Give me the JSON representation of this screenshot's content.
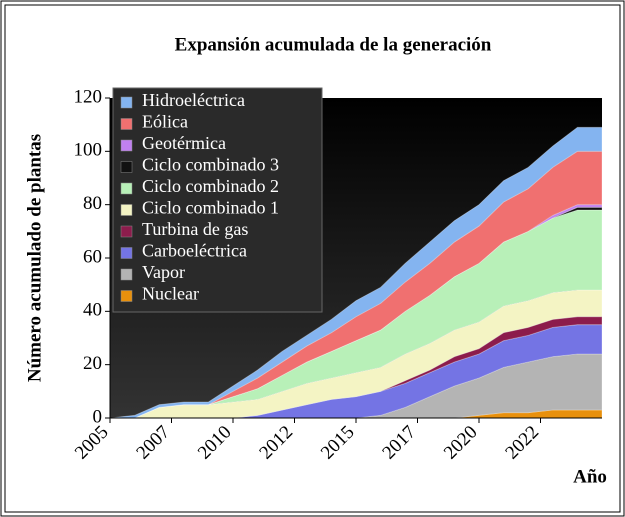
{
  "chart_data": {
    "type": "area",
    "title": "Expansión acumulada de la generación",
    "ylabel": "Número acumulado de plantas",
    "xlabel": "Año",
    "x": [
      2005,
      2006,
      2007,
      2008,
      2009,
      2010,
      2011,
      2012,
      2013,
      2014,
      2015,
      2016,
      2017,
      2018,
      2019,
      2020,
      2021,
      2022,
      2023,
      2024,
      2025
    ],
    "xlim": [
      2005,
      2025
    ],
    "xticks": [
      2005,
      {
        "value": 2007.5,
        "label": "2007"
      },
      2010,
      {
        "value": 2012.5,
        "label": "2012"
      },
      2015,
      {
        "value": 2017.5,
        "label": "2017"
      },
      2020,
      {
        "value": 2022.5,
        "label": "2022"
      }
    ],
    "ylim": [
      0,
      120
    ],
    "yticks": [
      0,
      20,
      40,
      60,
      80,
      100,
      120
    ],
    "stacked": true,
    "series": [
      {
        "name": "Nuclear",
        "color": "#e8900c",
        "values": [
          0,
          0,
          0,
          0,
          0,
          0,
          0,
          0,
          0,
          0,
          0,
          0,
          0,
          0,
          0,
          1,
          2,
          2,
          3,
          3,
          3
        ]
      },
      {
        "name": "Vapor",
        "color": "#b4b4b4",
        "values": [
          0,
          0,
          0,
          0,
          0,
          0,
          0,
          0,
          0,
          0,
          0,
          1,
          4,
          8,
          12,
          14,
          17,
          19,
          20,
          21,
          21
        ]
      },
      {
        "name": "Carboeléctrica",
        "color": "#7474e4",
        "values": [
          0,
          0,
          0,
          0,
          0,
          0,
          1,
          3,
          5,
          7,
          8,
          9,
          9,
          9,
          9,
          9,
          10,
          10,
          11,
          11,
          11
        ]
      },
      {
        "name": "Turbina de gas",
        "color": "#8c1c4c",
        "values": [
          0,
          0,
          0,
          0,
          0,
          0,
          0,
          0,
          0,
          0,
          0,
          0,
          1,
          1,
          2,
          2,
          3,
          3,
          3,
          3,
          3
        ]
      },
      {
        "name": "Ciclo combinado 1",
        "color": "#f4f4c4",
        "values": [
          0,
          0,
          4,
          5,
          5,
          6,
          6,
          7,
          8,
          8,
          9,
          9,
          10,
          10,
          10,
          10,
          10,
          10,
          10,
          10,
          10
        ]
      },
      {
        "name": "Ciclo combinado 2",
        "color": "#b8f0b8",
        "values": [
          0,
          0,
          0,
          0,
          0,
          2,
          4,
          6,
          8,
          10,
          12,
          14,
          16,
          18,
          20,
          22,
          24,
          26,
          28,
          30,
          30
        ]
      },
      {
        "name": "Ciclo combinado 3",
        "color": "#111111",
        "values": [
          0,
          0,
          0,
          0,
          0,
          0,
          0,
          0,
          0,
          0,
          0,
          0,
          0,
          0,
          0,
          0,
          0,
          0,
          0,
          1,
          1
        ]
      },
      {
        "name": "Geotérmica",
        "color": "#c080f0",
        "values": [
          0,
          0,
          0,
          0,
          0,
          0,
          0,
          0,
          0,
          0,
          0,
          0,
          0,
          0,
          0,
          0,
          0,
          0,
          1,
          1,
          1
        ]
      },
      {
        "name": "Eólica",
        "color": "#f07070",
        "values": [
          0,
          0,
          0,
          0,
          0,
          2,
          4,
          5,
          6,
          7,
          9,
          10,
          11,
          12,
          13,
          14,
          15,
          16,
          18,
          20,
          20
        ]
      },
      {
        "name": "Hidroeléctrica",
        "color": "#84b4f0",
        "values": [
          0,
          1,
          1,
          1,
          1,
          2,
          3,
          4,
          4,
          5,
          6,
          6,
          7,
          8,
          8,
          8,
          8,
          8,
          8,
          9,
          9
        ]
      }
    ]
  }
}
